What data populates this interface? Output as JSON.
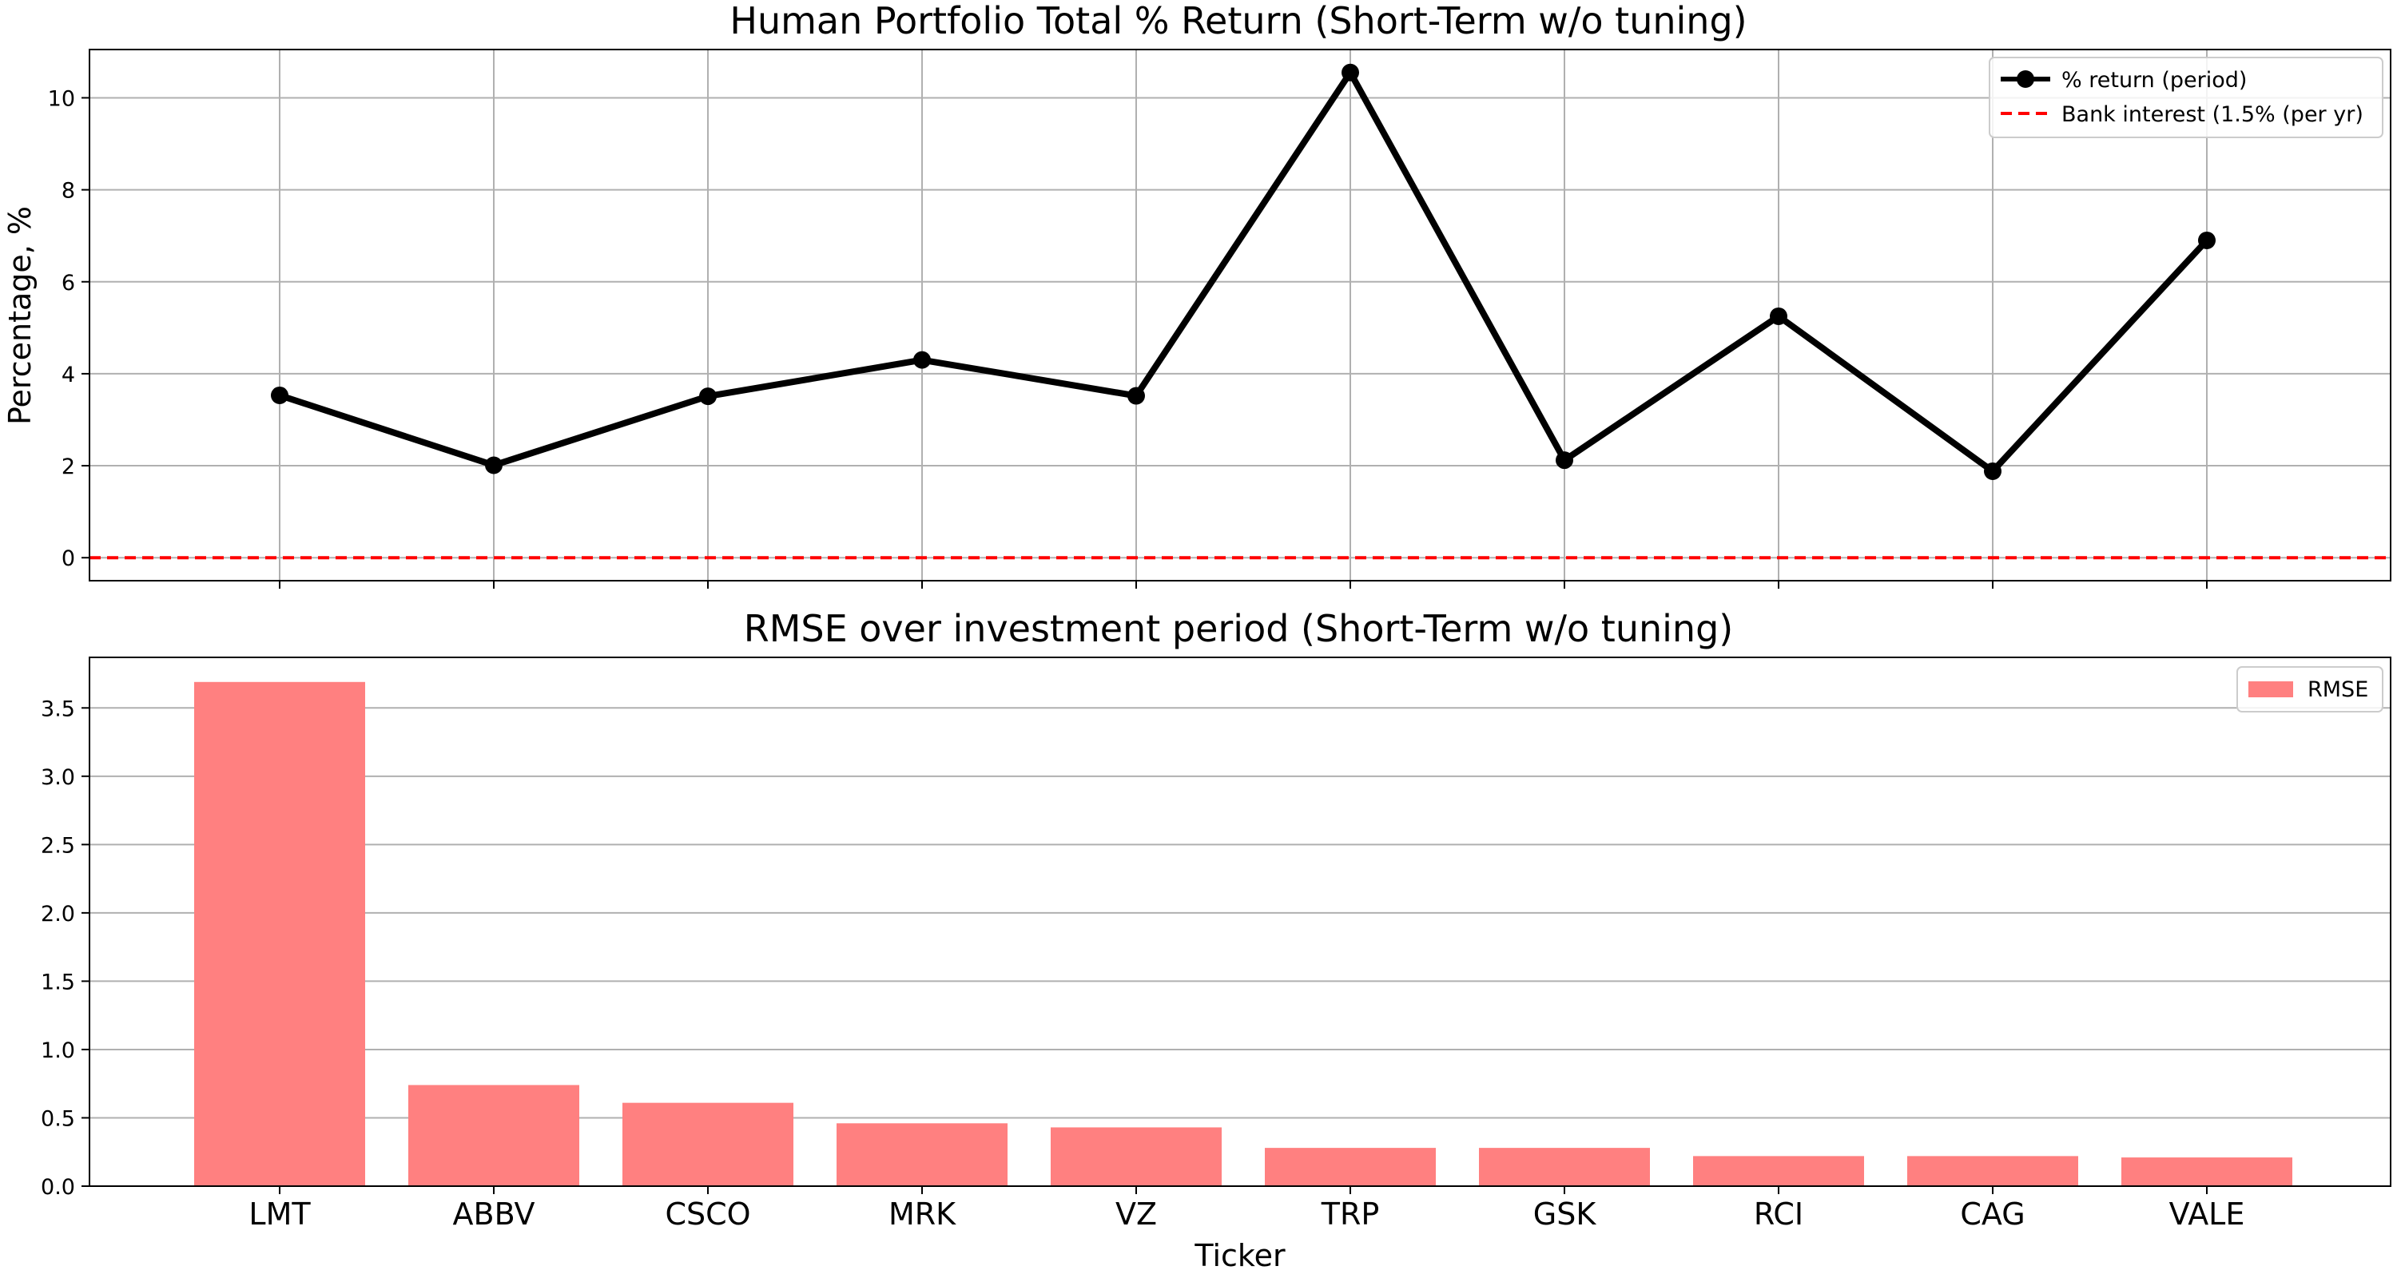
{
  "chart_data": [
    {
      "type": "line",
      "title": "Human Portfolio Total % Return (Short-Term w/o tuning)",
      "xlabel": "",
      "ylabel": "Percentage, %",
      "categories": [
        "LMT",
        "ABBV",
        "CSCO",
        "MRK",
        "VZ",
        "TRP",
        "GSK",
        "RCI",
        "CAG",
        "VALE"
      ],
      "series": [
        {
          "name": "% return (period)",
          "values": [
            3.53,
            2.01,
            3.51,
            4.3,
            3.52,
            10.55,
            2.12,
            5.25,
            1.88,
            6.9
          ],
          "color": "#000000",
          "style": "solid-marker"
        },
        {
          "name": "Bank interest (1.5% (per yr)",
          "values": [
            0,
            0,
            0,
            0,
            0,
            0,
            0,
            0,
            0,
            0
          ],
          "color": "#ff0000",
          "style": "dashed"
        }
      ],
      "ylim": [
        -0.5,
        11.05
      ],
      "yticks": [
        0,
        2,
        4,
        6,
        8,
        10
      ],
      "grid": true,
      "legend": "top-right",
      "show_xticklabels": false
    },
    {
      "type": "bar",
      "title": "RMSE over investment period (Short-Term w/o tuning)",
      "xlabel": "Ticker",
      "ylabel": "",
      "categories": [
        "LMT",
        "ABBV",
        "CSCO",
        "MRK",
        "VZ",
        "TRP",
        "GSK",
        "RCI",
        "CAG",
        "VALE"
      ],
      "series": [
        {
          "name": "RMSE",
          "values": [
            3.69,
            0.74,
            0.61,
            0.46,
            0.43,
            0.28,
            0.28,
            0.22,
            0.22,
            0.21
          ],
          "color": "#ff8080"
        }
      ],
      "ylim": [
        0,
        3.87
      ],
      "yticks": [
        0.0,
        0.5,
        1.0,
        1.5,
        2.0,
        2.5,
        3.0,
        3.5
      ],
      "ytick_labels": [
        "0.0",
        "0.5",
        "1.0",
        "1.5",
        "2.0",
        "2.5",
        "3.0",
        "3.5"
      ],
      "grid": "y",
      "legend": "top-right"
    }
  ]
}
